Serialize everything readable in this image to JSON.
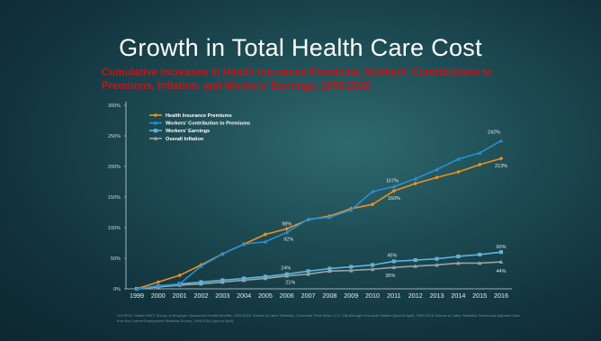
{
  "slide": {
    "title": "Growth in Total Health Care Cost",
    "subtitle": "Cumulative Increases in Health Insurance Premiums, Workers' Contributions to Premiums, Inflation, and Workers' Earnings, 1999-2016",
    "source": "SOURCE: Kaiser/HRET Survey of Employer-Sponsored Health Benefits, 1999-2016.  Bureau of Labor Statistics, Consumer Price Index, U.S. City Average of Annual Inflation (April to April), 1999-2016; Bureau of Labor Statistics, Seasonally Adjusted Data from the Current Employment Statistics Survey, 1999-2016 (April to April)."
  },
  "chart_data": {
    "type": "line",
    "title": "",
    "xlabel": "",
    "ylabel": "",
    "categories": [
      "1999",
      "2000",
      "2001",
      "2002",
      "2003",
      "2004",
      "2005",
      "2006",
      "2007",
      "2008",
      "2009",
      "2010",
      "2011",
      "2012",
      "2013",
      "2014",
      "2015",
      "2016"
    ],
    "ylim": [
      0,
      300
    ],
    "yticks": [
      0,
      50,
      100,
      150,
      200,
      250,
      300
    ],
    "ytick_labels": [
      "0%",
      "50%",
      "100%",
      "150%",
      "200%",
      "250%",
      "300%"
    ],
    "grid": false,
    "legend_position": "top-left",
    "series": [
      {
        "name": "Health Insurance Premiums",
        "color": "#f0901e",
        "marker": "diamond",
        "values": [
          0,
          11,
          22,
          39,
          57,
          73,
          89,
          98,
          113,
          119,
          131,
          138,
          160,
          172,
          182,
          191,
          203,
          213
        ]
      },
      {
        "name": "Workers' Contribution to Premiums",
        "color": "#2a8fd4",
        "marker": "triangle",
        "values": [
          0,
          5,
          8,
          37,
          57,
          73,
          77,
          92,
          114,
          117,
          129,
          159,
          167,
          180,
          195,
          212,
          222,
          242
        ]
      },
      {
        "name": "Workers' Earnings",
        "color": "#5fb4d8",
        "marker": "square",
        "values": [
          0,
          4,
          8,
          11,
          14,
          17,
          20,
          24,
          29,
          33,
          36,
          39,
          45,
          47,
          49,
          53,
          56,
          60
        ]
      },
      {
        "name": "Overall Inflation",
        "color": "#9aa4a6",
        "marker": "triangle",
        "values": [
          0,
          3,
          6,
          8,
          11,
          14,
          17,
          21,
          24,
          29,
          30,
          32,
          35,
          37,
          39,
          42,
          42,
          44
        ]
      }
    ],
    "annotations": [
      {
        "text": "98%",
        "x": "2006",
        "y": 98
      },
      {
        "text": "92%",
        "x": "2006",
        "y": 92
      },
      {
        "text": "24%",
        "x": "2006",
        "y": 24
      },
      {
        "text": "21%",
        "x": "2006",
        "y": 21
      },
      {
        "text": "167%",
        "x": "2011",
        "y": 167
      },
      {
        "text": "160%",
        "x": "2011",
        "y": 160
      },
      {
        "text": "45%",
        "x": "2011",
        "y": 45
      },
      {
        "text": "35%",
        "x": "2011",
        "y": 35
      },
      {
        "text": "242%",
        "x": "2016",
        "y": 242
      },
      {
        "text": "213%",
        "x": "2016",
        "y": 213
      },
      {
        "text": "60%",
        "x": "2016",
        "y": 60
      },
      {
        "text": "44%",
        "x": "2016",
        "y": 44
      }
    ]
  }
}
